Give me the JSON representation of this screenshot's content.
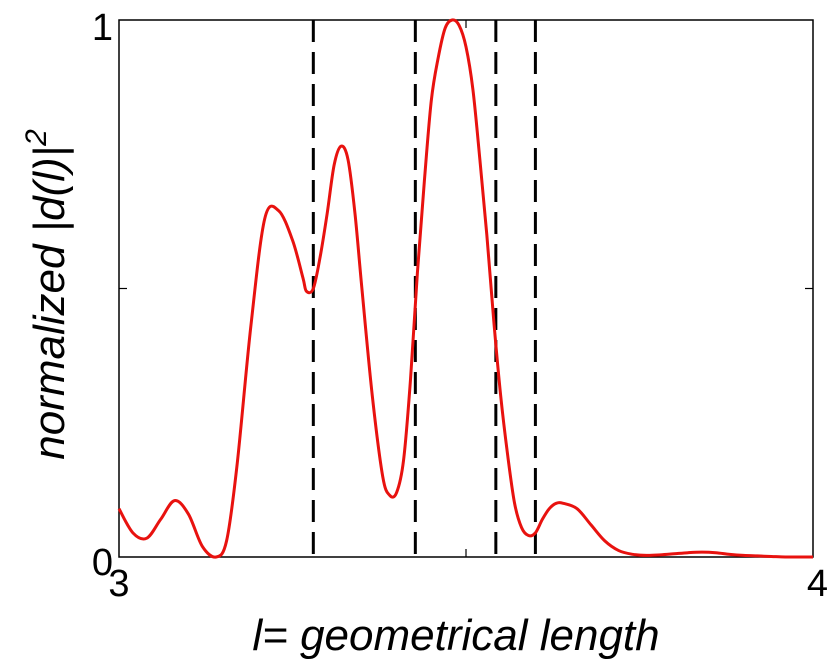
{
  "chart_data": {
    "type": "line",
    "title": "",
    "xlabel": "l= geometrical length",
    "ylabel": "normalized |d(l)|",
    "ylabel_superscript": "2",
    "xlim": [
      3,
      4
    ],
    "ylim": [
      0,
      1
    ],
    "x_tick_labels": [
      {
        "value": 3,
        "label": "3"
      },
      {
        "value": 4,
        "label": "4"
      }
    ],
    "y_tick_labels": [
      {
        "value": 0,
        "label": "0"
      },
      {
        "value": 1,
        "label": "1"
      }
    ],
    "minor_ticks": {
      "x": [
        3.5
      ],
      "y": [
        0.5
      ]
    },
    "grid": false,
    "series": [
      {
        "color": "#e8120f",
        "x": [
          3.0,
          3.02,
          3.04,
          3.06,
          3.08,
          3.1,
          3.12,
          3.14,
          3.155,
          3.17,
          3.19,
          3.21,
          3.23,
          3.25,
          3.265,
          3.27,
          3.28,
          3.29,
          3.3,
          3.31,
          3.32,
          3.33,
          3.34,
          3.35,
          3.365,
          3.38,
          3.39,
          3.4,
          3.41,
          3.42,
          3.43,
          3.44,
          3.45,
          3.46,
          3.47,
          3.48,
          3.49,
          3.5,
          3.51,
          3.52,
          3.53,
          3.54,
          3.55,
          3.56,
          3.57,
          3.58,
          3.59,
          3.6,
          3.61,
          3.62,
          3.63,
          3.64,
          3.66,
          3.68,
          3.7,
          3.72,
          3.74,
          3.76,
          3.78,
          3.8,
          3.82,
          3.84,
          3.86,
          3.88,
          3.9,
          3.92,
          3.94,
          3.96,
          3.98,
          4.0
        ],
        "y": [
          0.09,
          0.045,
          0.035,
          0.07,
          0.105,
          0.08,
          0.02,
          0.0,
          0.03,
          0.17,
          0.43,
          0.63,
          0.645,
          0.59,
          0.52,
          0.495,
          0.5,
          0.56,
          0.64,
          0.73,
          0.765,
          0.74,
          0.64,
          0.5,
          0.3,
          0.15,
          0.115,
          0.12,
          0.18,
          0.33,
          0.53,
          0.7,
          0.85,
          0.93,
          0.985,
          1.0,
          0.99,
          0.95,
          0.87,
          0.74,
          0.6,
          0.44,
          0.3,
          0.19,
          0.1,
          0.055,
          0.04,
          0.045,
          0.07,
          0.09,
          0.1,
          0.1,
          0.09,
          0.06,
          0.03,
          0.012,
          0.005,
          0.003,
          0.004,
          0.006,
          0.008,
          0.009,
          0.008,
          0.005,
          0.003,
          0.002,
          0.001,
          0.0,
          0.0,
          0.0
        ]
      }
    ],
    "vertical_lines": {
      "style": "dashed",
      "color": "#000000",
      "x": [
        3.28,
        3.427,
        3.543,
        3.6
      ]
    }
  }
}
